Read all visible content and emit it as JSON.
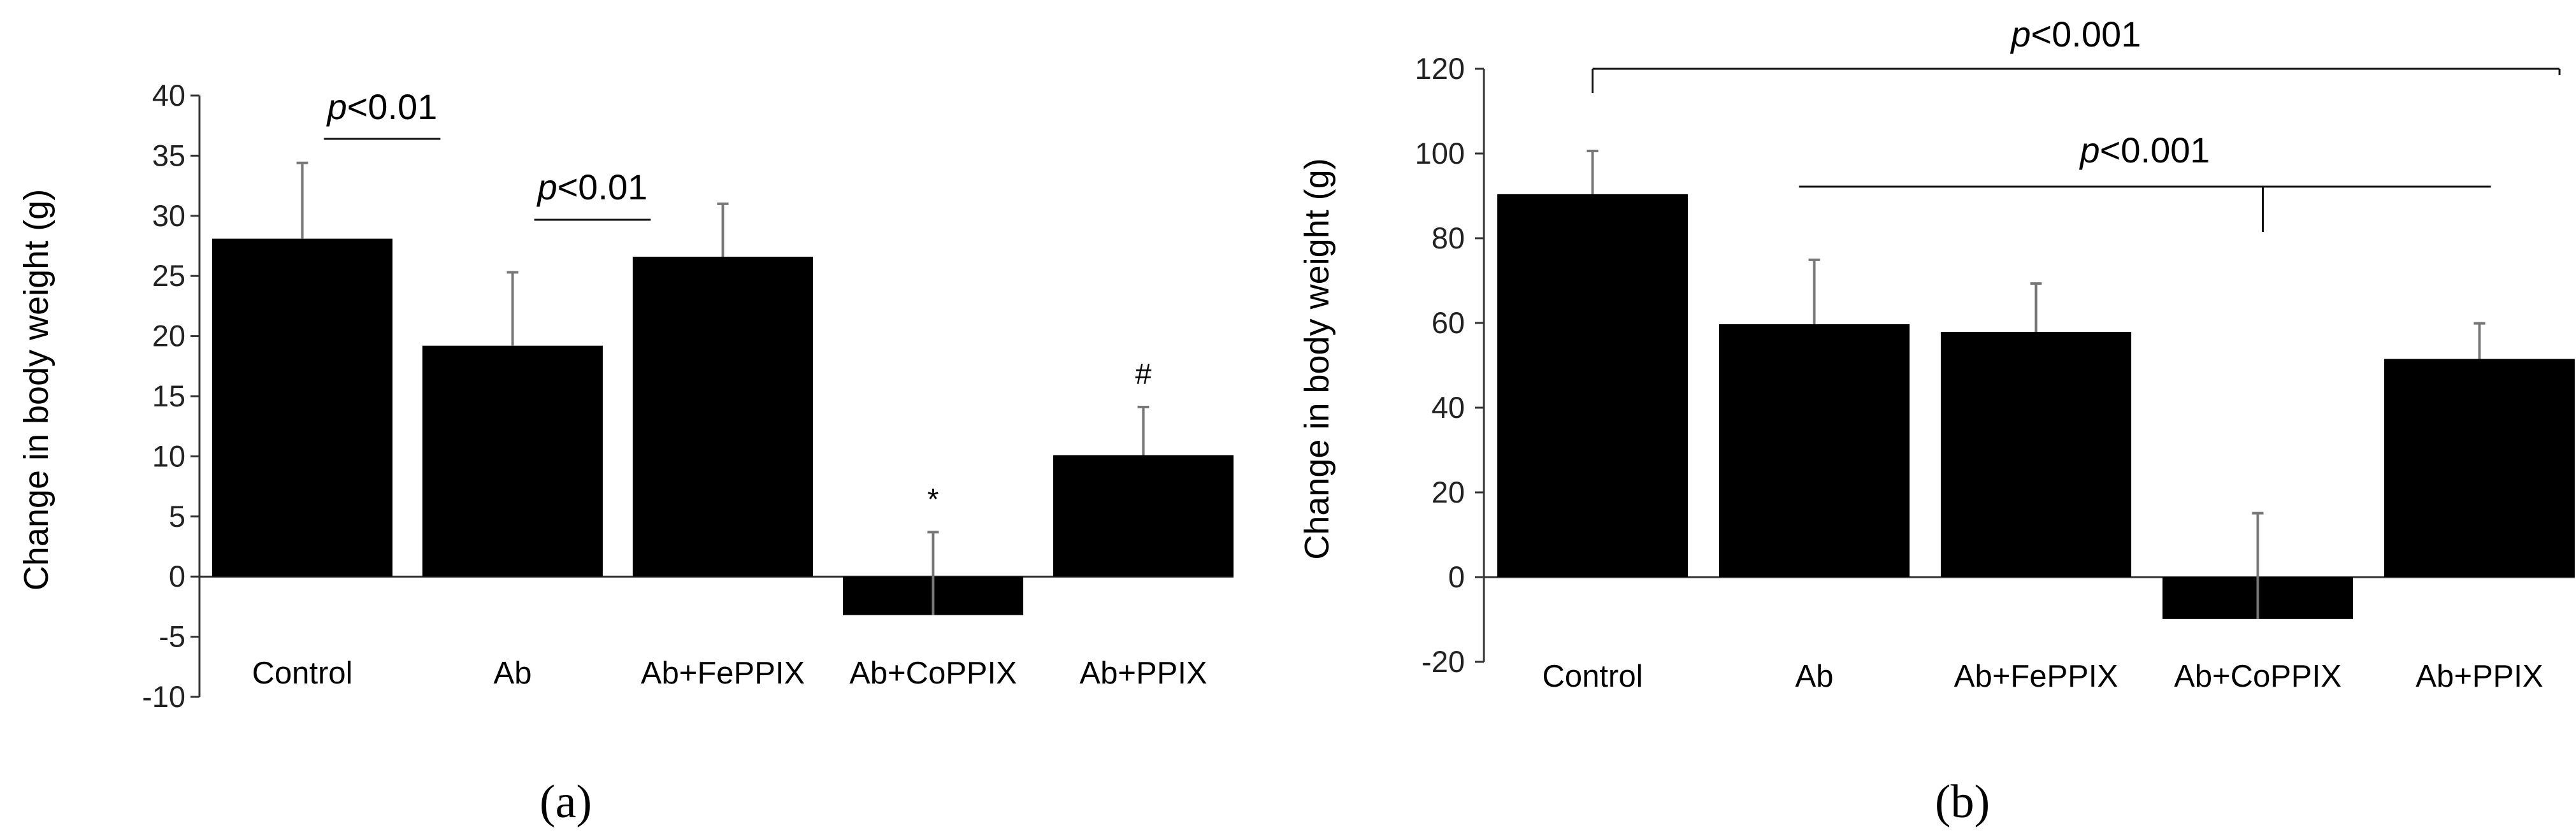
{
  "colors": {
    "bar": "#000000",
    "axis": "#333333",
    "error_bar": "#777777"
  },
  "chart_data": [
    {
      "type": "bar",
      "panel_label": "(a)",
      "ylabel": "Change in body weight (g)",
      "ylim": [
        -10,
        40
      ],
      "ytick_step": 5,
      "categories": [
        "Control",
        "Ab",
        "Ab+FePPIX",
        "Ab+CoPPIX",
        "Ab+PPIX"
      ],
      "values": [
        28.1,
        19.2,
        26.6,
        -3.2,
        10.1
      ],
      "errors": [
        6.3,
        6.1,
        4.4,
        6.9,
        4.0
      ],
      "markers": [
        "",
        "",
        "",
        "*",
        "#"
      ],
      "comparisons": [
        {
          "between": [
            "Control",
            "Ab"
          ],
          "p_italic": "p",
          "label": "<0.01"
        },
        {
          "between": [
            "Ab",
            "Ab+FePPIX"
          ],
          "p_italic": "p",
          "label": "<0.01"
        }
      ],
      "grid": false,
      "legend": "none"
    },
    {
      "type": "bar",
      "panel_label": "(b)",
      "ylabel": "Change in body weight (g)",
      "ylim": [
        -20,
        120
      ],
      "ytick_step": 20,
      "categories": [
        "Control",
        "Ab",
        "Ab+FePPIX",
        "Ab+CoPPIX",
        "Ab+PPIX"
      ],
      "values": [
        90.4,
        59.7,
        57.9,
        -9.9,
        51.5
      ],
      "errors": [
        10.2,
        15.2,
        11.4,
        25.0,
        8.4
      ],
      "markers": [
        "",
        "",
        "",
        "",
        ""
      ],
      "comparisons": [
        {
          "between": [
            "Control",
            "Ab+PPIX"
          ],
          "p_italic": "p",
          "label": "<0.001"
        },
        {
          "between": [
            "Ab",
            "Ab+PPIX"
          ],
          "stem": "Ab+CoPPIX",
          "p_italic": "p",
          "label": "<0.001"
        }
      ],
      "grid": false,
      "legend": "none"
    }
  ]
}
